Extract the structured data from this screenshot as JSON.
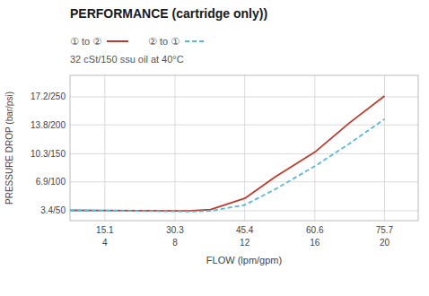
{
  "chart_data": {
    "type": "line",
    "title": "PERFORMANCE (cartridge only))",
    "subtitle": "32 cSt/150 ssu oil at 40°C",
    "x_label": "FLOW (lpm/gpm)",
    "y_label": "PRESSURE DROP (bar/psi)",
    "x": [
      7.55,
      15.1,
      30.3,
      34.0,
      38.0,
      45.4,
      52.0,
      60.6,
      68.0,
      75.7
    ],
    "series": [
      {
        "name": "① to ②",
        "color": "#c0392b",
        "line_style": "solid",
        "values": [
          3.45,
          3.43,
          3.38,
          3.4,
          3.55,
          4.9,
          7.5,
          10.5,
          14.0,
          17.3
        ]
      },
      {
        "name": "② to ①",
        "color": "#5bb8d4",
        "line_style": "dashed",
        "values": [
          3.43,
          3.41,
          3.32,
          3.3,
          3.38,
          4.1,
          6.0,
          8.8,
          11.5,
          14.5
        ]
      }
    ],
    "xlim": [
      7.55,
      83.0
    ],
    "ylim": [
      2.2,
      19.8
    ],
    "xticks": [
      15.1,
      30.3,
      45.4,
      60.6,
      75.7
    ],
    "yticks": [
      {
        "value": 3.4,
        "label": "3.4/50"
      },
      {
        "value": 6.9,
        "label": "6.9/100"
      },
      {
        "value": 10.3,
        "label": "10.3/150"
      },
      {
        "value": 13.8,
        "label": "13.8/200"
      },
      {
        "value": 17.2,
        "label": "17.2/250"
      }
    ],
    "annotations": [
      {
        "x": 15.1,
        "text": "4"
      },
      {
        "x": 30.3,
        "text": "8"
      },
      {
        "x": 45.4,
        "text": "12"
      },
      {
        "x": 60.6,
        "text": "16"
      },
      {
        "x": 75.7,
        "text": "20"
      }
    ],
    "grid": true,
    "legend": "top"
  }
}
